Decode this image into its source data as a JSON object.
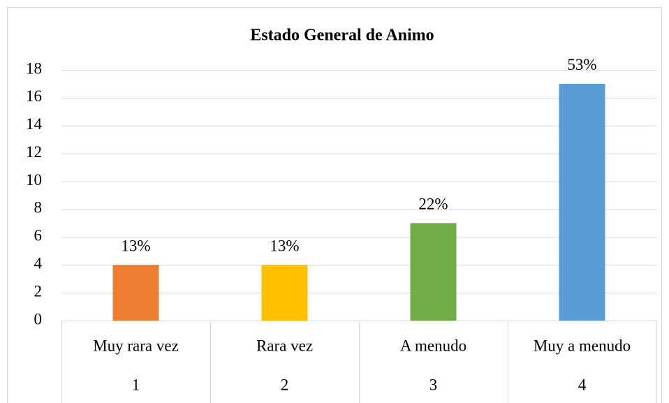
{
  "chart_data": {
    "type": "bar",
    "title": "Estado General de Animo",
    "categories": [
      "Muy rara vez",
      "Rara vez",
      "A menudo",
      "Muy a menudo"
    ],
    "category_numbers": [
      "1",
      "2",
      "3",
      "4"
    ],
    "values": [
      4,
      4,
      7,
      17
    ],
    "percent_labels": [
      "13%",
      "13%",
      "22%",
      "53%"
    ],
    "colors": [
      "#ed7d31",
      "#ffc000",
      "#70ad47",
      "#5b9bd5"
    ],
    "ylim": [
      0,
      18
    ],
    "yticks": [
      0,
      2,
      4,
      6,
      8,
      10,
      12,
      14,
      16,
      18
    ],
    "grid": true
  }
}
